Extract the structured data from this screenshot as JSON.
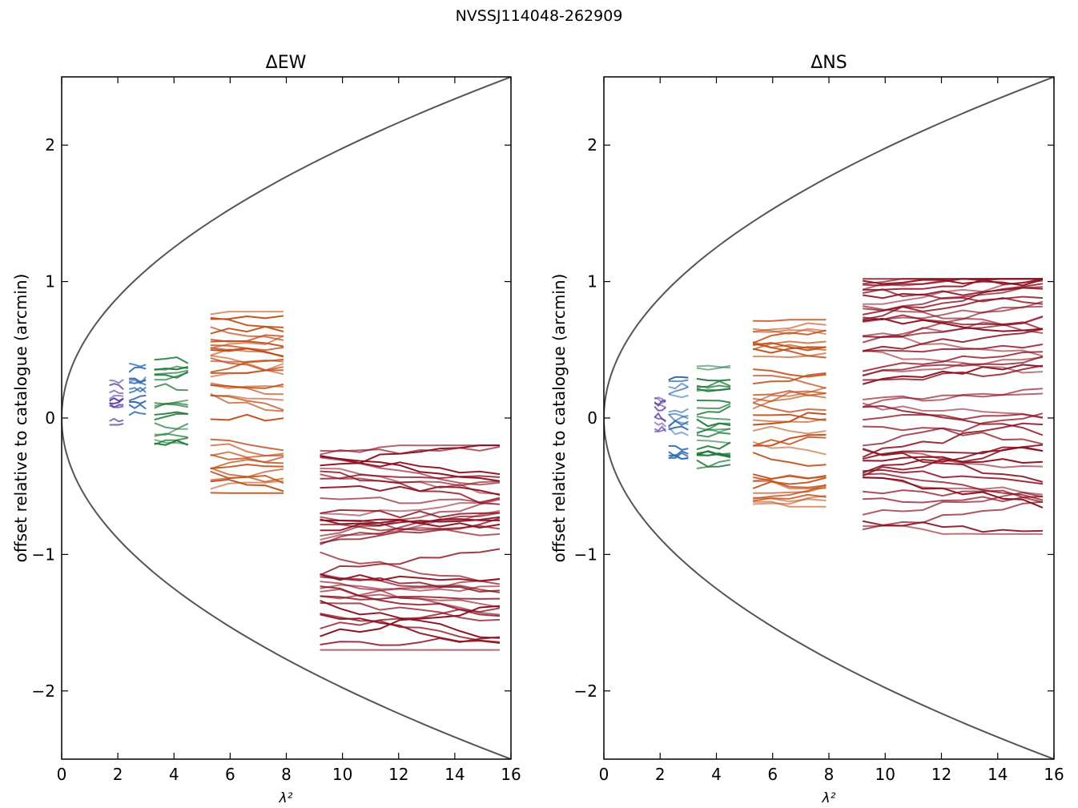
{
  "figure": {
    "suptitle": "NVSSJ114048-262909"
  },
  "colors": {
    "envelope": "#555555",
    "axes": "#000000"
  },
  "chart_data": [
    {
      "type": "line",
      "title": "ΔEW",
      "xlabel": "λ²",
      "ylabel": "offset relative to catalogue (arcmin)",
      "xlim": [
        0,
        16
      ],
      "ylim": [
        -2.5,
        2.5
      ],
      "xticks": [
        0,
        2,
        4,
        6,
        8,
        10,
        12,
        14,
        16
      ],
      "yticks": [
        -2,
        -1,
        0,
        1,
        2
      ],
      "xtick_labels": [
        "0",
        "2",
        "4",
        "6",
        "8",
        "10",
        "12",
        "14",
        "16"
      ],
      "ytick_labels": [
        "−2",
        "−1",
        "0",
        "1",
        "2"
      ],
      "grid": false,
      "envelope": {
        "name": "",
        "color": "#555555",
        "formula": "y = ± 0.625 × sqrt(x)",
        "x_range": [
          0,
          16
        ]
      },
      "bands": [
        {
          "color": "#5b3ca8",
          "x": [
            1.7,
            2.2
          ],
          "y_range": [
            -0.05,
            0.3
          ]
        },
        {
          "color": "#2f6ab5",
          "x": [
            2.4,
            3.0
          ],
          "y_range": [
            -0.02,
            0.4
          ]
        },
        {
          "color": "#1f7a3a",
          "x": [
            3.3,
            4.5
          ],
          "y_range": [
            -0.2,
            0.45
          ]
        },
        {
          "color": "#c0501a",
          "x": [
            5.3,
            7.9
          ],
          "y_range": [
            -0.55,
            0.78
          ]
        },
        {
          "color": "#8b1020",
          "x": [
            9.2,
            15.6
          ],
          "y_range": [
            -1.7,
            -0.2
          ]
        }
      ]
    },
    {
      "type": "line",
      "title": "ΔNS",
      "xlabel": "λ²",
      "ylabel": "offset relative to catalogue (arcmin)",
      "xlim": [
        0,
        16
      ],
      "ylim": [
        -2.5,
        2.5
      ],
      "xticks": [
        0,
        2,
        4,
        6,
        8,
        10,
        12,
        14,
        16
      ],
      "yticks": [
        -2,
        -1,
        0,
        1,
        2
      ],
      "xtick_labels": [
        "0",
        "2",
        "4",
        "6",
        "8",
        "10",
        "12",
        "14",
        "16"
      ],
      "ytick_labels": [
        "−2",
        "−1",
        "0",
        "1",
        "2"
      ],
      "grid": false,
      "envelope": {
        "name": "",
        "color": "#555555",
        "formula": "y = ± 0.625 × sqrt(x)",
        "x_range": [
          0,
          16
        ]
      },
      "bands": [
        {
          "color": "#5b3ca8",
          "x": [
            1.8,
            2.2
          ],
          "y_range": [
            -0.1,
            0.25
          ]
        },
        {
          "color": "#2f6ab5",
          "x": [
            2.3,
            3.0
          ],
          "y_range": [
            -0.3,
            0.3
          ]
        },
        {
          "color": "#1f7a3a",
          "x": [
            3.3,
            4.5
          ],
          "y_range": [
            -0.4,
            0.45
          ]
        },
        {
          "color": "#c0501a",
          "x": [
            5.3,
            7.9
          ],
          "y_range": [
            -0.65,
            0.72
          ]
        },
        {
          "color": "#8b1020",
          "x": [
            9.2,
            15.6
          ],
          "y_range": [
            -0.85,
            1.02
          ]
        }
      ]
    }
  ]
}
